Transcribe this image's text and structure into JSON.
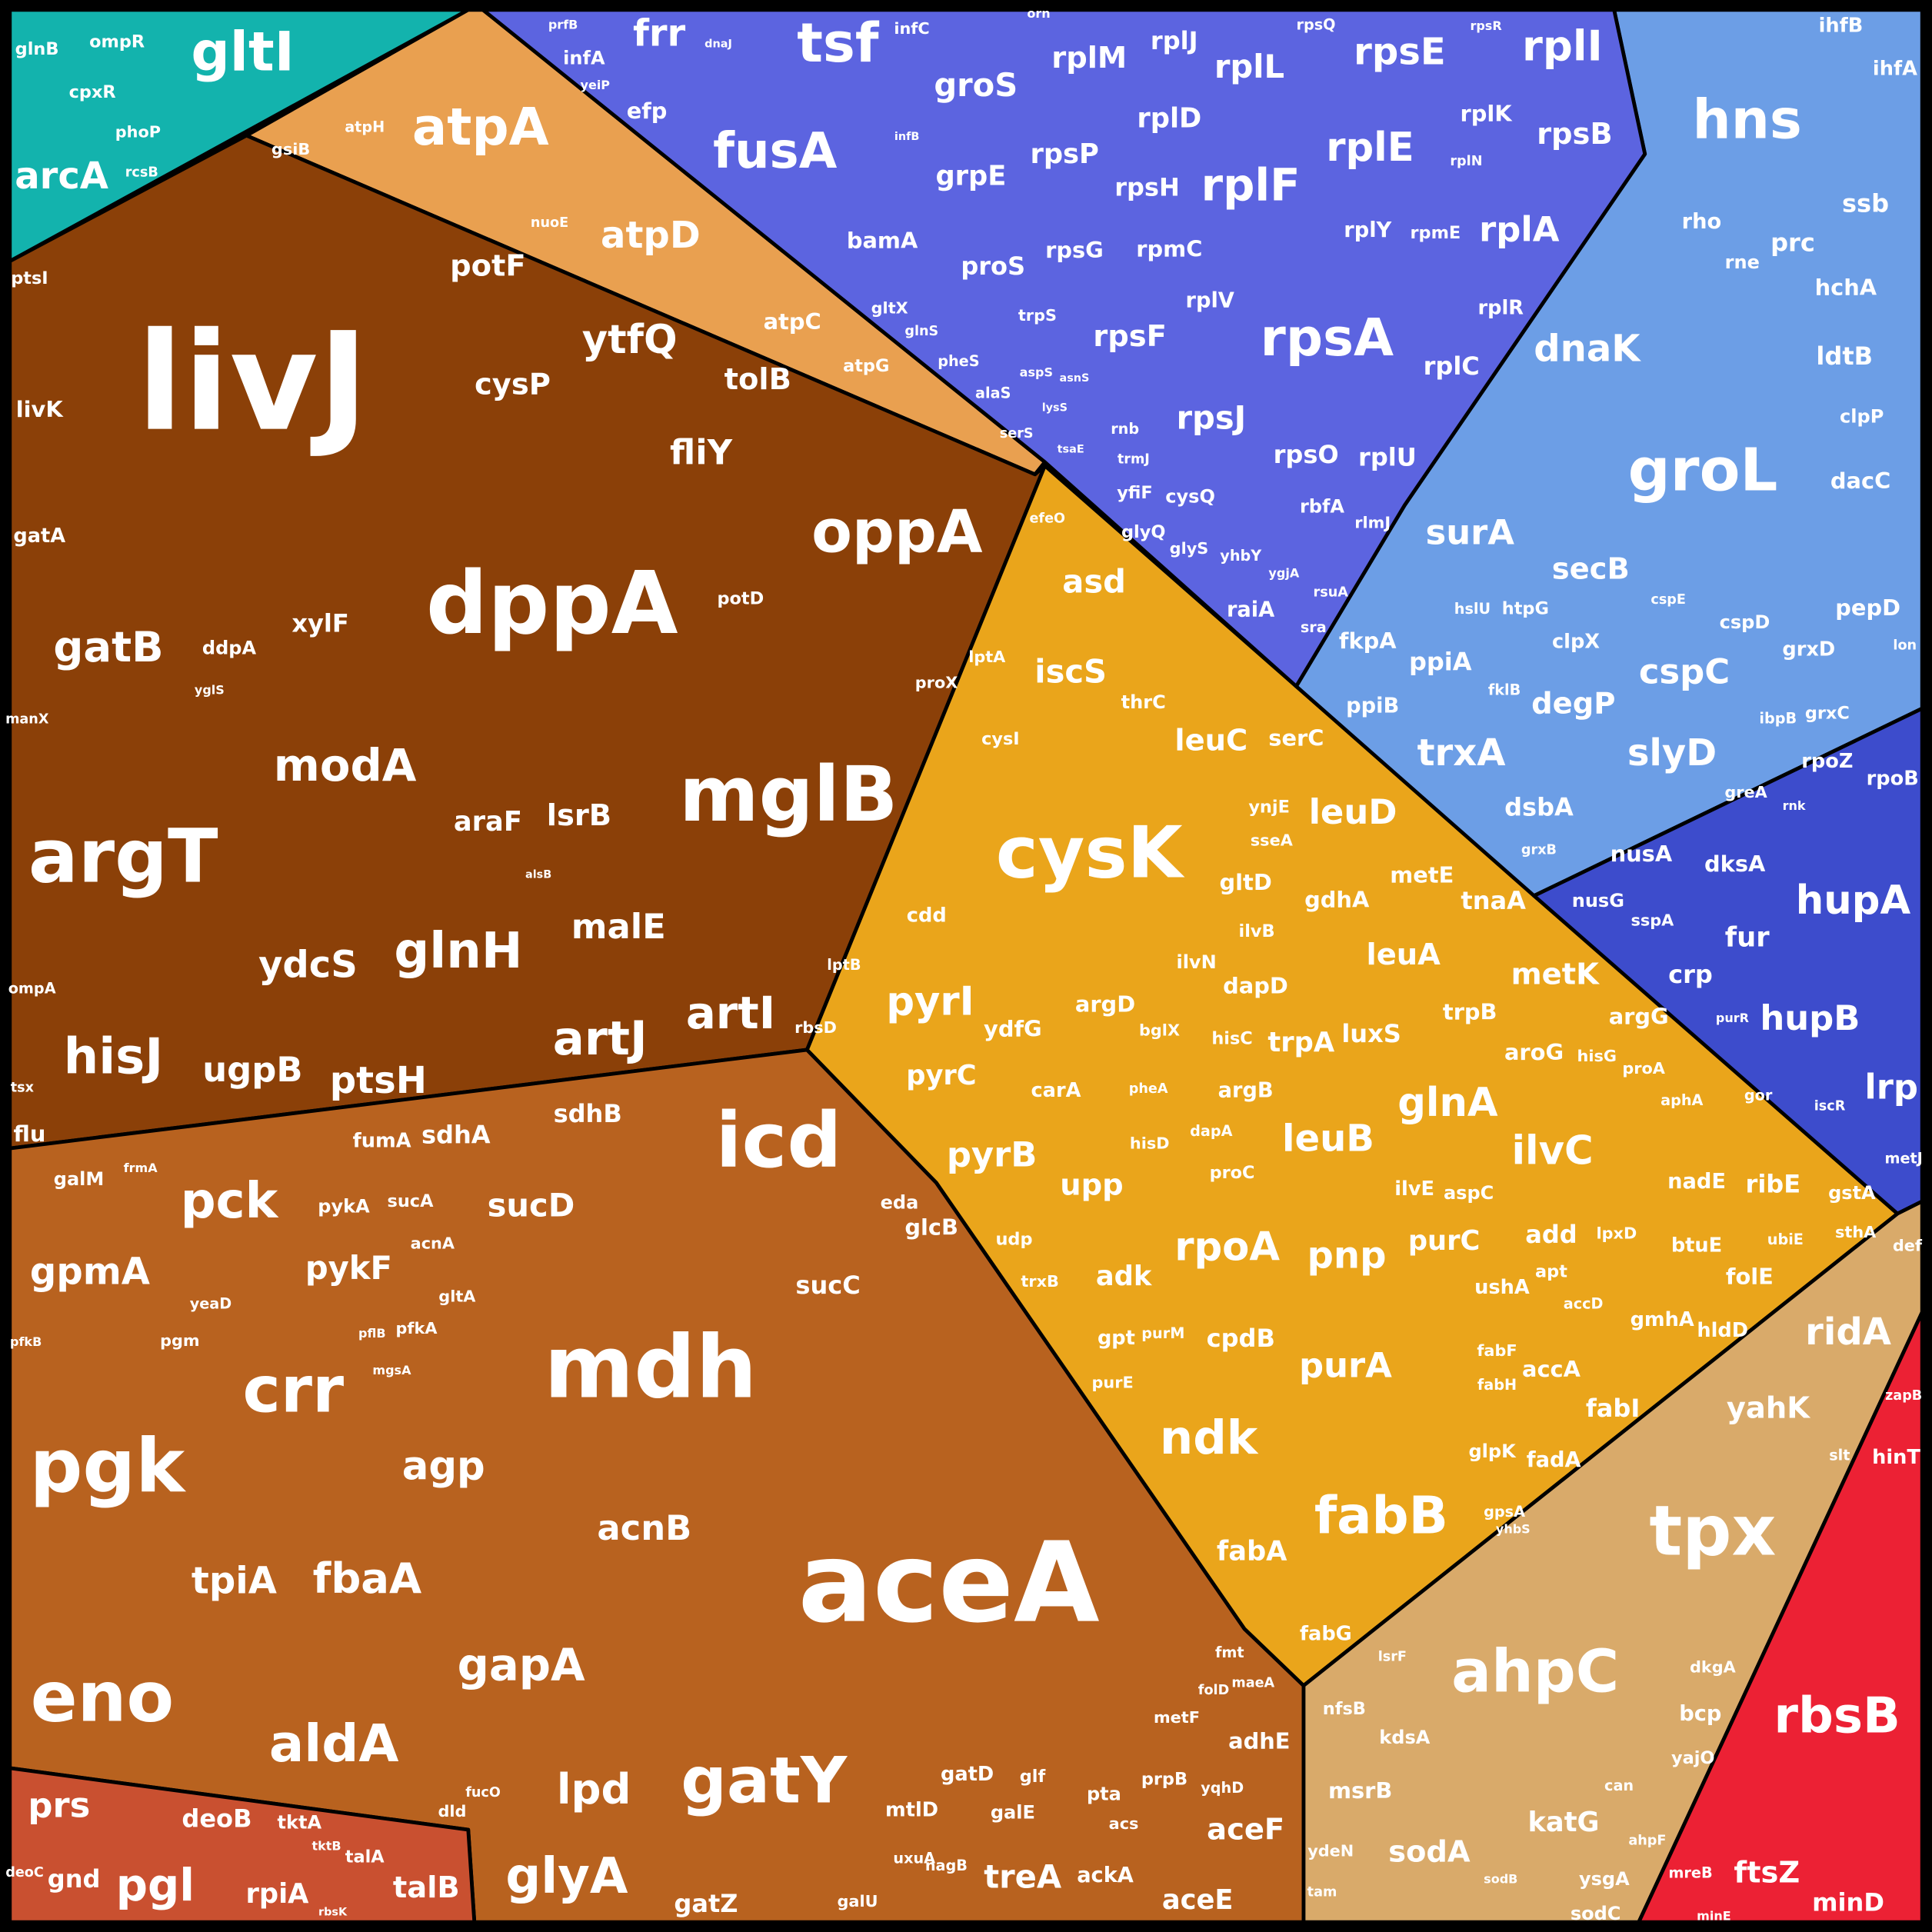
{
  "groups": [
    {
      "color": "#13b3ad",
      "cells": [
        "gltI",
        "arcA",
        "glnB",
        "ompR",
        "cpxR",
        "phoP",
        "rcsB"
      ]
    },
    {
      "color": "#e9a050",
      "cells": [
        "atpA",
        "atpD",
        "atpC",
        "atpG",
        "atpH",
        "nuoE"
      ]
    },
    {
      "color": "#8b4008",
      "cells": [
        "livJ",
        "dppA",
        "mglB",
        "oppA",
        "argT",
        "modA",
        "glnH",
        "artJ",
        "artI",
        "hisJ",
        "ugpB",
        "ptsH",
        "ydcS",
        "malE",
        "lsrB",
        "araF",
        "gatB",
        "potF",
        "ytfQ",
        "cysP",
        "tolB",
        "fliY",
        "xylF",
        "ddpA",
        "livK",
        "gatA",
        "potD",
        "proX",
        "lptA",
        "ptsI",
        "gsiB",
        "efeO",
        "flu",
        "rbsD",
        "lptB",
        "ompA",
        "manX",
        "yglS",
        "alsB",
        "tsx"
      ]
    },
    {
      "color": "#b8621f",
      "cells": [
        "aceA",
        "mdh",
        "icd",
        "gatY",
        "pgk",
        "eno",
        "crr",
        "gapA",
        "aldA",
        "fbaA",
        "tpiA",
        "agp",
        "acnB",
        "pck",
        "gpmA",
        "sucD",
        "pykF",
        "sucC",
        "sdhA",
        "sdhB",
        "fumA",
        "pykA",
        "sucA",
        "acnA",
        "gltA",
        "pfkA",
        "yeaD",
        "pgm",
        "galM",
        "glyA",
        "lpd",
        "gatZ",
        "glcB",
        "eda",
        "mtlD",
        "gatD",
        "galE",
        "glf",
        "treA",
        "ackA",
        "nagB",
        "galU",
        "uxuA",
        "prpB",
        "aceF",
        "aceE",
        "adhE",
        "yqhD",
        "metF",
        "pta",
        "acs",
        "fmt",
        "folD",
        "maeA",
        "dld",
        "fucO",
        "pflB",
        "mgsA",
        "frmA",
        "pfkB"
      ]
    },
    {
      "color": "#c95030",
      "cells": [
        "prs",
        "pgl",
        "gnd",
        "deoB",
        "rpiA",
        "talB",
        "talA",
        "tktA",
        "tktB",
        "deoC",
        "rbsK"
      ]
    },
    {
      "color": "#eaa51b",
      "cells": [
        "cysK",
        "asd",
        "iscS",
        "leuC",
        "serC",
        "leuD",
        "metE",
        "tnaA",
        "ynjE",
        "sseA",
        "gltD",
        "gdhA",
        "ilvB",
        "leuA",
        "metK",
        "argG",
        "trpB",
        "luxS",
        "trpA",
        "dapD",
        "ilvN",
        "argD",
        "hisC",
        "bglX",
        "argB",
        "aroG",
        "hisG",
        "proA",
        "glnA",
        "ilvC",
        "leuB",
        "ilvE",
        "aspC",
        "proC",
        "dapA",
        "hisD",
        "pheA",
        "pyrI",
        "pyrC",
        "ydfG",
        "pyrB",
        "carA",
        "upp",
        "cdd",
        "cysI",
        "thrC",
        "udp",
        "trxB",
        "adk",
        "rpoA",
        "pnp",
        "purC",
        "add",
        "ushA",
        "apt",
        "cpdB",
        "purA",
        "gpt",
        "purM",
        "purE",
        "ndk",
        "fabB",
        "fabA",
        "fabG",
        "fabI",
        "accA",
        "fadA",
        "glpK",
        "fabF",
        "fabH",
        "accD",
        "gmhA",
        "hldD",
        "nadE",
        "ribE",
        "gstA",
        "folE",
        "btuE",
        "sthA",
        "ubiE",
        "lpxD",
        "aphA",
        "gor",
        "gpsA"
      ]
    },
    {
      "color": "#6c9ee6",
      "cells": [
        "hns",
        "groL",
        "dnaK",
        "surA",
        "secB",
        "cspC",
        "slyD",
        "trxA",
        "degP",
        "ppiA",
        "fkpA",
        "ppiB",
        "dsbA",
        "clpX",
        "htpG",
        "hslU",
        "cspD",
        "grxD",
        "grxC",
        "pepD",
        "dacC",
        "clpP",
        "ldtB",
        "hchA",
        "prc",
        "rne",
        "rho",
        "ssb",
        "ihfB",
        "ihfA",
        "ibpB",
        "grxB",
        "lon",
        "cspE",
        "fklB"
      ]
    },
    {
      "color": "#5c64e0",
      "cells": [
        "tsf",
        "fusA",
        "frr",
        "grpE",
        "groS",
        "bamA",
        "proS",
        "rpsA",
        "rplF",
        "rplE",
        "rpsE",
        "rplI",
        "rplL",
        "rplM",
        "rplJ",
        "rplD",
        "rpsP",
        "rpsH",
        "rpsG",
        "rpmC",
        "rplV",
        "rpsF",
        "rpsJ",
        "rpsO",
        "rplU",
        "rplC",
        "rplR",
        "rplA",
        "rpsB",
        "rplK",
        "rplY",
        "rpmE",
        "rplN",
        "infA",
        "efp",
        "yeiP",
        "infC",
        "infB",
        "rpsQ",
        "rpsR",
        "trpS",
        "alaS",
        "pheS",
        "glnS",
        "gltX",
        "serS",
        "aspS",
        "lysS",
        "asnS",
        "rnb",
        "trmJ",
        "tsaE",
        "cysQ",
        "yfiF",
        "glyQ",
        "glyS",
        "raiA",
        "rbfA",
        "rlmJ",
        "yhbY",
        "ygjA",
        "rsuA",
        "sra",
        "dnaJ",
        "prfB",
        "orn"
      ]
    },
    {
      "color": "#3d4ccc",
      "cells": [
        "hupA",
        "hupB",
        "lrp",
        "fur",
        "crp",
        "dksA",
        "nusA",
        "nusG",
        "sspA",
        "greA",
        "rpoZ",
        "rpoB",
        "iscR",
        "metJ",
        "purR",
        "rnk"
      ]
    },
    {
      "color": "#d9aa6a",
      "cells": [
        "tpx",
        "ahpC",
        "ridA",
        "yahK",
        "sodA",
        "katG",
        "msrB",
        "kdsA",
        "nfsB",
        "bcp",
        "yajO",
        "dkgA",
        "ysgA",
        "sodC",
        "ydeN",
        "slt",
        "lsrF",
        "can",
        "ahpF",
        "sodB",
        "tam",
        "yhbS",
        "def"
      ]
    },
    {
      "color": "#ec2134",
      "cells": [
        "rbsB",
        "ftsZ",
        "minD",
        "hinT",
        "zapB",
        "mreB",
        "minE"
      ]
    }
  ]
}
